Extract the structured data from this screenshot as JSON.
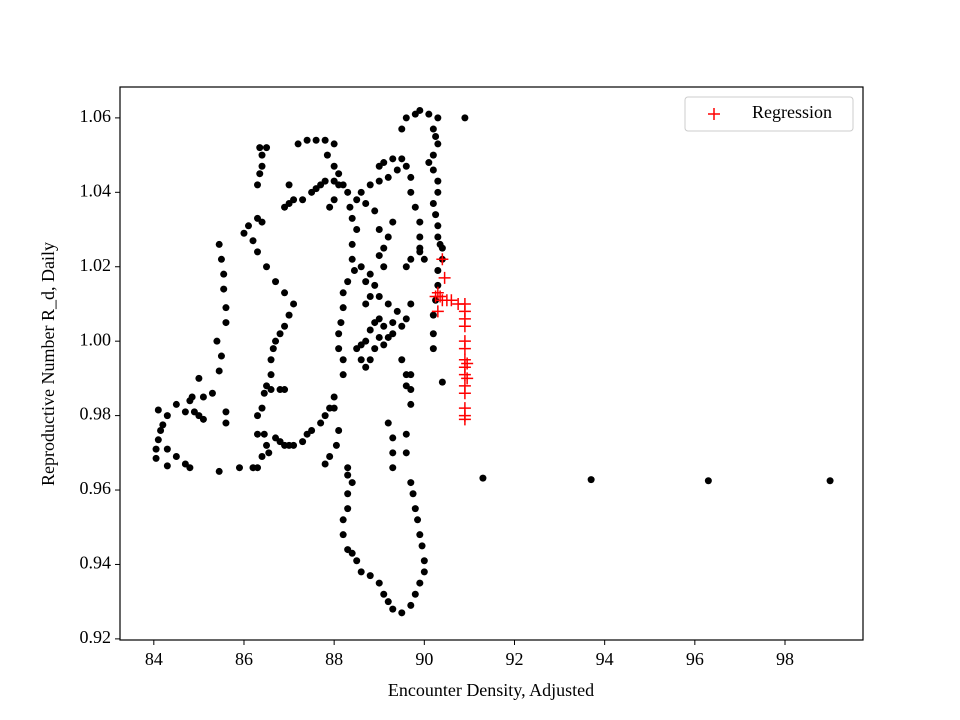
{
  "chart_data": {
    "type": "scatter",
    "xlabel": "Encounter Density, Adjusted",
    "ylabel": "Reproductive Number R_d, Daily",
    "xlim": [
      83.25,
      99.73
    ],
    "ylim": [
      0.9197,
      1.0683
    ],
    "xticks": [
      84,
      86,
      88,
      90,
      92,
      94,
      96,
      98
    ],
    "yticks": [
      0.92,
      0.94,
      0.96,
      0.98,
      {
        "value": 1.0,
        "label": "1.00"
      },
      1.02,
      1.04,
      1.06
    ],
    "legend": "upper right",
    "series": [
      {
        "color": "#000000",
        "marker": "circle",
        "x": [
          84.05,
          84.05,
          84.1,
          84.15,
          84.2,
          84.1,
          84.3,
          84.5,
          84.7,
          84.9,
          85.0,
          85.1,
          84.8,
          84.85,
          85.0,
          85.1,
          85.3,
          84.3,
          84.3,
          84.5,
          84.7,
          84.8,
          85.45,
          85.6,
          85.6,
          85.4,
          85.45,
          85.5,
          85.6,
          85.6,
          85.55,
          85.55,
          85.5,
          85.45,
          86.0,
          86.1,
          86.2,
          85.9,
          86.3,
          86.4,
          86.3,
          86.3,
          86.4,
          86.45,
          86.5,
          86.6,
          86.6,
          86.65,
          86.7,
          86.6,
          86.8,
          86.9,
          86.45,
          86.5,
          86.55,
          86.7,
          86.8,
          86.9,
          87.0,
          87.1,
          87.3,
          87.4,
          87.5,
          87.7,
          87.8,
          88.0,
          86.8,
          86.9,
          87.0,
          87.1,
          86.9,
          86.7,
          86.5,
          86.3,
          86.2,
          86.3,
          86.4,
          86.3,
          86.35,
          86.4,
          86.4,
          86.35,
          86.5,
          87.0,
          87.0,
          86.9,
          87.1,
          87.3,
          87.5,
          87.6,
          87.7,
          87.8,
          88.0,
          88.1,
          88.0,
          87.9,
          87.2,
          87.4,
          87.6,
          87.8,
          88.0,
          87.85,
          88.0,
          88.1,
          88.2,
          88.3,
          88.35,
          88.4,
          88.5,
          88.4,
          88.4,
          88.45,
          88.3,
          88.2,
          88.2,
          88.15,
          88.1,
          88.1,
          88.2,
          88.2,
          88.0,
          87.9,
          88.1,
          88.05,
          87.9,
          87.8,
          88.3,
          88.4,
          88.3,
          88.3,
          88.2,
          88.2,
          88.3,
          88.4,
          88.5,
          88.6,
          88.8,
          89.0,
          89.1,
          89.2,
          89.3,
          89.5,
          89.7,
          89.8,
          89.9,
          90.0,
          90.0,
          89.95,
          89.9,
          89.85,
          89.8,
          89.75,
          89.7,
          89.6,
          89.6,
          89.7,
          89.6,
          89.7,
          89.2,
          89.3,
          89.3,
          89.3,
          88.3,
          88.5,
          88.6,
          88.7,
          88.8,
          88.9,
          89.0,
          89.1,
          89.2,
          89.3,
          89.5,
          89.6,
          89.7,
          89.4,
          88.7,
          88.8,
          88.9,
          89.0,
          89.2,
          88.8,
          88.6,
          88.7,
          88.9,
          88.6,
          88.7,
          88.8,
          89.0,
          89.1,
          89.3,
          89.5,
          89.0,
          89.1,
          89.1,
          89.2,
          89.3,
          89.0,
          88.9,
          88.7,
          88.5,
          88.6,
          88.8,
          89.0,
          89.2,
          89.4,
          89.5,
          89.3,
          89.1,
          89.0,
          89.6,
          89.7,
          89.7,
          89.8,
          89.9,
          89.9,
          89.9,
          89.7,
          89.6,
          90.0,
          89.9,
          89.5,
          89.6,
          89.8,
          89.9,
          90.1,
          90.3,
          90.9,
          90.2,
          90.25,
          90.3,
          90.2,
          90.1,
          90.2,
          90.3,
          90.3,
          90.2,
          90.25,
          90.3,
          90.3,
          90.35,
          90.4,
          90.4,
          90.3,
          90.3,
          90.25,
          90.2,
          90.2,
          90.2,
          90.4,
          89.6,
          89.7,
          91.3,
          93.7,
          96.3,
          99.0
        ],
        "values": [
          0.9685,
          0.971,
          0.9735,
          0.976,
          0.9775,
          0.9815,
          0.98,
          0.983,
          0.981,
          0.981,
          0.98,
          0.979,
          0.984,
          0.985,
          0.99,
          0.985,
          0.986,
          0.9665,
          0.971,
          0.969,
          0.967,
          0.966,
          0.965,
          0.978,
          0.981,
          1.0,
          0.992,
          0.996,
          1.005,
          1.009,
          1.014,
          1.018,
          1.022,
          1.026,
          1.029,
          1.031,
          0.966,
          0.966,
          0.966,
          0.969,
          0.975,
          0.98,
          0.982,
          0.986,
          0.988,
          0.991,
          0.995,
          0.998,
          1.0,
          0.987,
          0.987,
          0.987,
          0.975,
          0.972,
          0.97,
          0.974,
          0.973,
          0.972,
          0.972,
          0.972,
          0.973,
          0.975,
          0.976,
          0.978,
          0.98,
          0.982,
          1.002,
          1.004,
          1.007,
          1.01,
          1.013,
          1.016,
          1.02,
          1.024,
          1.027,
          1.033,
          1.032,
          1.042,
          1.045,
          1.047,
          1.05,
          1.052,
          1.052,
          1.042,
          1.037,
          1.036,
          1.038,
          1.038,
          1.04,
          1.041,
          1.042,
          1.043,
          1.043,
          1.042,
          1.038,
          1.036,
          1.053,
          1.054,
          1.054,
          1.054,
          1.053,
          1.05,
          1.047,
          1.045,
          1.042,
          1.04,
          1.036,
          1.033,
          1.03,
          1.026,
          1.022,
          1.019,
          1.016,
          1.013,
          1.009,
          1.005,
          1.002,
          0.998,
          0.995,
          0.991,
          0.985,
          0.982,
          0.976,
          0.972,
          0.969,
          0.967,
          0.966,
          0.962,
          0.959,
          0.955,
          0.952,
          0.948,
          0.944,
          0.943,
          0.941,
          0.938,
          0.937,
          0.935,
          0.932,
          0.93,
          0.928,
          0.927,
          0.929,
          0.932,
          0.935,
          0.938,
          0.941,
          0.945,
          0.948,
          0.952,
          0.955,
          0.959,
          0.962,
          0.97,
          0.975,
          0.983,
          0.988,
          0.991,
          0.978,
          0.974,
          0.97,
          0.966,
          0.964,
          0.998,
          0.999,
          1.0,
          1.003,
          1.005,
          1.006,
          1.004,
          1.001,
          1.002,
          1.004,
          1.006,
          1.01,
          1.008,
          1.016,
          1.018,
          1.015,
          1.012,
          1.01,
          1.012,
          1.02,
          1.01,
          0.998,
          0.995,
          0.993,
          0.995,
          1.001,
          0.999,
          1.005,
          0.995,
          1.023,
          1.02,
          1.025,
          1.028,
          1.032,
          1.03,
          1.035,
          1.037,
          1.038,
          1.04,
          1.042,
          1.043,
          1.044,
          1.046,
          1.049,
          1.049,
          1.048,
          1.047,
          1.047,
          1.044,
          1.04,
          1.036,
          1.032,
          1.028,
          1.025,
          1.022,
          1.02,
          1.022,
          1.024,
          1.057,
          1.06,
          1.061,
          1.062,
          1.061,
          1.06,
          1.06,
          1.057,
          1.055,
          1.053,
          1.05,
          1.048,
          1.046,
          1.043,
          1.04,
          1.037,
          1.034,
          1.031,
          1.028,
          1.026,
          1.025,
          1.022,
          1.019,
          1.015,
          1.011,
          1.007,
          1.002,
          0.998,
          0.989,
          0.991,
          0.987,
          0.9632,
          0.9628,
          0.9625,
          0.9625
        ]
      },
      {
        "name": "Regression",
        "color": "#ff0000",
        "marker": "plus",
        "x": [
          90.3,
          90.4,
          90.45,
          90.35,
          90.4,
          90.5,
          90.6,
          90.75,
          90.3,
          90.9,
          90.9,
          90.9,
          90.9,
          90.9,
          90.9,
          90.9,
          90.9,
          90.9,
          90.9,
          90.9,
          90.9,
          90.9,
          90.9,
          90.95,
          90.95,
          90.25
        ],
        "values": [
          1.013,
          1.022,
          1.017,
          1.012,
          1.011,
          1.011,
          1.011,
          1.01,
          1.008,
          1.01,
          1.008,
          1.006,
          1.004,
          1.0,
          0.998,
          0.995,
          0.993,
          0.991,
          0.988,
          0.986,
          0.982,
          0.98,
          0.979,
          0.994,
          0.99,
          1.012
        ]
      }
    ]
  }
}
